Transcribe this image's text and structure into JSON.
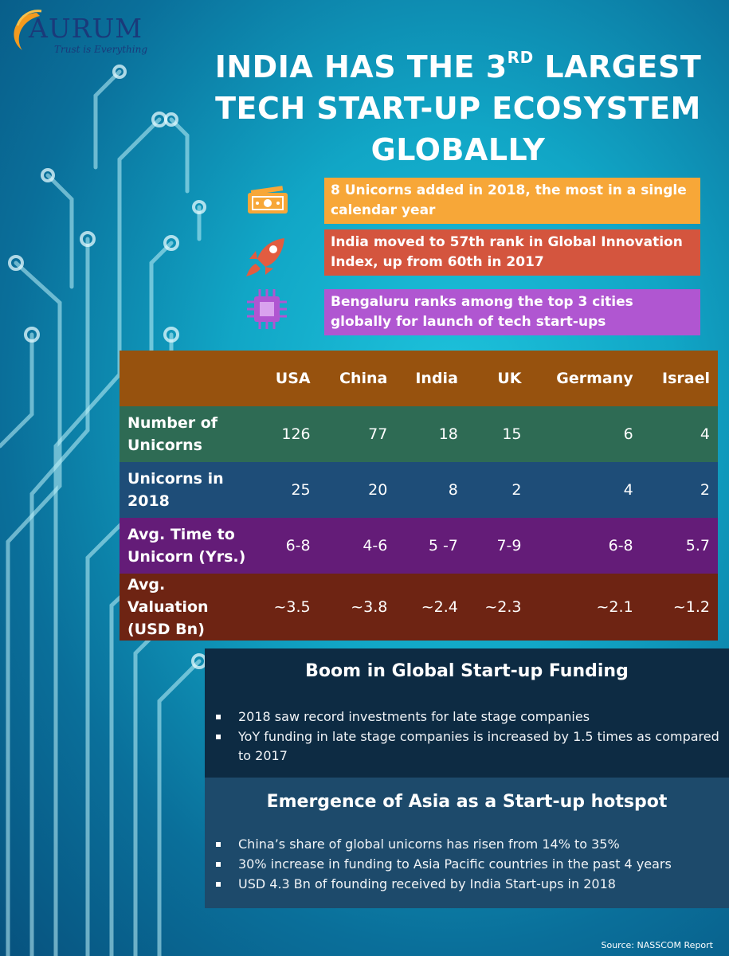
{
  "logo": {
    "name": "AURUM",
    "tagline": "Trust is Everything"
  },
  "title": {
    "line1_pre": "INDIA HAS THE 3",
    "line1_sup": "RD",
    "line1_post": " LARGEST",
    "line2": "TECH START-UP ECOSYSTEM",
    "line3": "GLOBALLY"
  },
  "facts": [
    {
      "icon": "money-icon",
      "text": "8 Unicorns added in 2018, the most in a single calendar year",
      "color": "#f7a738"
    },
    {
      "icon": "rocket-icon",
      "text": "India moved to 57th rank in Global Innovation Index, up from 60th in 2017",
      "color": "#d4553e"
    },
    {
      "icon": "chip-icon",
      "text": "Bengaluru ranks among the top 3 cities globally for launch of tech start-ups",
      "color": "#b056d1"
    }
  ],
  "table": {
    "columns": [
      "USA",
      "China",
      "India",
      "UK",
      "Germany",
      "Israel"
    ],
    "rows": [
      {
        "label": "Number of Unicorns",
        "values": [
          "126",
          "77",
          "18",
          "15",
          "6",
          "4"
        ]
      },
      {
        "label": "Unicorns in 2018",
        "values": [
          "25",
          "20",
          "8",
          "2",
          "4",
          "2"
        ]
      },
      {
        "label": "Avg. Time to Unicorn (Yrs.)",
        "values": [
          "6-8",
          "4-6",
          "5 -7",
          "7-9",
          "6-8",
          "5.7"
        ]
      },
      {
        "label": "Avg. Valuation (USD Bn)",
        "values": [
          "~3.5",
          "~3.8",
          "~2.4",
          "~2.3",
          "~2.1",
          "~1.2"
        ]
      }
    ]
  },
  "funding": {
    "title": "Boom in Global Start-up Funding",
    "bullets": [
      "2018 saw record investments for late stage companies",
      "YoY funding in late stage companies is increased by 1.5 times as compared to 2017"
    ]
  },
  "asia": {
    "title": "Emergence of Asia as a Start-up hotspot",
    "bullets": [
      "China’s share of global unicorns has risen from 14% to 35%",
      "30% increase in funding to Asia Pacific countries in the past 4 years",
      "USD 4.3 Bn of founding received by India Start-ups in 2018"
    ]
  },
  "source": "Source: NASSCOM Report"
}
